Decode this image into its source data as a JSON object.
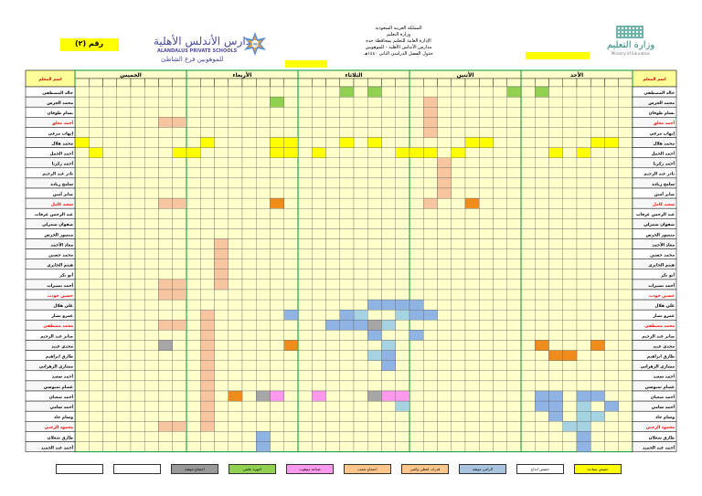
{
  "header": {
    "center_lines": [
      "المملكة العربية السعودية",
      "وزارة التعليم",
      "الإدارة العامة للتعليم بمحافظة جدة",
      "مدارس الأندلس الأهلية - للموهوبين",
      "جدول الفصل الدراسي الثاني ١٤٤٠هـ"
    ],
    "moe_name_ar": "وزارة التعليم",
    "moe_name_en": "Ministry of Education",
    "school_name_ar": "مدارس الأندلس الأهلية",
    "school_name_en": "ALANDALUS PRIVATE SCHOOLS",
    "school_branch": "للموهوبين فرع الشاطئ",
    "room_label": "رقم (٢)",
    "star_year": "1982"
  },
  "teacher_col_label": "اسم المعلم",
  "days": [
    "الأحد",
    "الأثنين",
    "الثلاثاء",
    "الأربعاء",
    "الخميس"
  ],
  "teachers": [
    {
      "name": "خالد المصطفى",
      "red": false
    },
    {
      "name": "محمد الخرس",
      "red": false
    },
    {
      "name": "بسام طوقان",
      "red": false
    },
    {
      "name": "أحمد معلق",
      "red": true
    },
    {
      "name": "إيهاب مرعي",
      "red": false
    },
    {
      "name": "محمد هلال",
      "red": false
    },
    {
      "name": "أحمد الجمل",
      "red": false
    },
    {
      "name": "أحمد زكريا",
      "red": false
    },
    {
      "name": "نادر عبد الرحيم",
      "red": false
    },
    {
      "name": "سامح زيادة",
      "red": false
    },
    {
      "name": "صابر أمين",
      "red": false
    },
    {
      "name": "سعيد كامل",
      "red": true
    },
    {
      "name": "عبد الرحمن عرفات",
      "red": false
    },
    {
      "name": "صفوان شمرلي",
      "red": false
    },
    {
      "name": "منصور الخرس",
      "red": false
    },
    {
      "name": "معاذ الأحمد",
      "red": false
    },
    {
      "name": "محمد حسين",
      "red": false
    },
    {
      "name": "هيثم الجابري",
      "red": false
    },
    {
      "name": "أبو بكر",
      "red": false
    },
    {
      "name": "أحمد نصيرات",
      "red": false
    },
    {
      "name": "حسين جودت",
      "red": true
    },
    {
      "name": "علي هلال",
      "red": false
    },
    {
      "name": "عمرو نصار",
      "red": false
    },
    {
      "name": "محمد مصطفى",
      "red": true
    },
    {
      "name": "صابر عبد الرحيم",
      "red": false
    },
    {
      "name": "مجدي عبيد",
      "red": false
    },
    {
      "name": "طارق ابراهيم",
      "red": false
    },
    {
      "name": "مشاري الزهراني",
      "red": false
    },
    {
      "name": "أحمد سعيد",
      "red": false
    },
    {
      "name": "عصام تمبوسي",
      "red": false
    },
    {
      "name": "أحمد شعبان",
      "red": false
    },
    {
      "name": "أحمد سامي",
      "red": false
    },
    {
      "name": "وسام جاد",
      "red": false
    },
    {
      "name": "محمود الرجبي",
      "red": true
    },
    {
      "name": "طارق شعلان",
      "red": false
    },
    {
      "name": "أحمد عبد الحميد",
      "red": false
    }
  ],
  "legend": [
    {
      "label": "حصص سيادية",
      "color": "#ffff00"
    },
    {
      "label": "حصص ابداع",
      "color": "#ffffff"
    },
    {
      "label": "الرامي موهبة",
      "color": "#a9c4de"
    },
    {
      "label": "قدرات لفظي وكمي",
      "color": "#ffc58a"
    },
    {
      "label": "اجتماع شعب",
      "color": "#ffc58a"
    },
    {
      "label": "صناعة موهوب",
      "color": "#ff99ee"
    },
    {
      "label": "اجهزة علمي",
      "color": "#92d050"
    },
    {
      "label": "اجتماع موهبة",
      "color": "#999999"
    },
    {
      "label": "",
      "color": "#ffffff"
    },
    {
      "label": "",
      "color": "#ffffff"
    }
  ],
  "colors": {
    "cell": "#ffffcc",
    "day_block_border": "#18a048",
    "yellow": "#ffff00",
    "green": "#92d050",
    "orange": "#f08c1c",
    "peach": "#f7c6a1",
    "blue": "#8fb4e3",
    "teal": "#a6d3e2",
    "gray": "#a6a6a6",
    "pink": "#ff99ee",
    "red_name": "#ff0000"
  },
  "cells": [
    [
      0,
      19,
      "green"
    ],
    [
      0,
      21,
      "green"
    ],
    [
      0,
      31,
      "green"
    ],
    [
      0,
      33,
      "green"
    ],
    [
      1,
      14,
      "green"
    ],
    [
      1,
      25,
      "peach"
    ],
    [
      2,
      25,
      "peach"
    ],
    [
      3,
      25,
      "peach"
    ],
    [
      3,
      6,
      "peach"
    ],
    [
      3,
      7,
      "peach"
    ],
    [
      4,
      25,
      "peach"
    ],
    [
      5,
      0,
      "yellow"
    ],
    [
      5,
      9,
      "yellow"
    ],
    [
      5,
      14,
      "yellow"
    ],
    [
      5,
      15,
      "yellow"
    ],
    [
      5,
      19,
      "yellow"
    ],
    [
      5,
      21,
      "yellow"
    ],
    [
      5,
      28,
      "yellow"
    ],
    [
      5,
      29,
      "yellow"
    ],
    [
      5,
      37,
      "yellow"
    ],
    [
      5,
      38,
      "yellow"
    ],
    [
      6,
      1,
      "yellow"
    ],
    [
      6,
      7,
      "yellow"
    ],
    [
      6,
      8,
      "yellow"
    ],
    [
      6,
      14,
      "yellow"
    ],
    [
      6,
      15,
      "yellow"
    ],
    [
      6,
      17,
      "yellow"
    ],
    [
      6,
      23,
      "yellow"
    ],
    [
      6,
      24,
      "yellow"
    ],
    [
      6,
      25,
      "yellow"
    ],
    [
      6,
      27,
      "yellow"
    ],
    [
      6,
      34,
      "yellow"
    ],
    [
      6,
      36,
      "yellow"
    ],
    [
      7,
      26,
      "peach"
    ],
    [
      8,
      26,
      "peach"
    ],
    [
      9,
      26,
      "peach"
    ],
    [
      10,
      26,
      "peach"
    ],
    [
      11,
      28,
      "orange"
    ],
    [
      11,
      14,
      "orange"
    ],
    [
      11,
      6,
      "peach"
    ],
    [
      11,
      7,
      "peach"
    ],
    [
      11,
      25,
      "peach"
    ],
    [
      15,
      10,
      "peach"
    ],
    [
      16,
      10,
      "peach"
    ],
    [
      17,
      10,
      "peach"
    ],
    [
      18,
      10,
      "peach"
    ],
    [
      19,
      10,
      "peach"
    ],
    [
      19,
      6,
      "peach"
    ],
    [
      19,
      7,
      "peach"
    ],
    [
      20,
      6,
      "peach"
    ],
    [
      20,
      7,
      "peach"
    ],
    [
      21,
      21,
      "blue"
    ],
    [
      21,
      22,
      "blue"
    ],
    [
      21,
      23,
      "blue"
    ],
    [
      21,
      24,
      "blue"
    ],
    [
      22,
      23,
      "teal"
    ],
    [
      22,
      24,
      "blue"
    ],
    [
      22,
      25,
      "blue"
    ],
    [
      22,
      20,
      "teal"
    ],
    [
      22,
      19,
      "blue"
    ],
    [
      22,
      15,
      "blue"
    ],
    [
      22,
      9,
      "peach"
    ],
    [
      23,
      18,
      "blue"
    ],
    [
      23,
      19,
      "blue"
    ],
    [
      23,
      20,
      "blue"
    ],
    [
      23,
      21,
      "gray"
    ],
    [
      23,
      22,
      "teal"
    ],
    [
      23,
      9,
      "peach"
    ],
    [
      23,
      6,
      "peach"
    ],
    [
      23,
      7,
      "peach"
    ],
    [
      24,
      24,
      "blue"
    ],
    [
      24,
      21,
      "blue"
    ],
    [
      24,
      9,
      "peach"
    ],
    [
      25,
      37,
      "orange"
    ],
    [
      25,
      33,
      "orange"
    ],
    [
      25,
      22,
      "teal"
    ],
    [
      25,
      15,
      "orange"
    ],
    [
      25,
      9,
      "peach"
    ],
    [
      25,
      6,
      "gray"
    ],
    [
      26,
      35,
      "orange"
    ],
    [
      26,
      34,
      "orange"
    ],
    [
      26,
      22,
      "blue"
    ],
    [
      26,
      21,
      "teal"
    ],
    [
      26,
      9,
      "peach"
    ],
    [
      27,
      22,
      "blue"
    ],
    [
      27,
      9,
      "peach"
    ],
    [
      28,
      9,
      "peach"
    ],
    [
      29,
      9,
      "peach"
    ],
    [
      30,
      37,
      "blue"
    ],
    [
      30,
      36,
      "blue"
    ],
    [
      30,
      34,
      "blue"
    ],
    [
      30,
      33,
      "blue"
    ],
    [
      30,
      23,
      "pink"
    ],
    [
      30,
      22,
      "pink"
    ],
    [
      30,
      21,
      "gray"
    ],
    [
      30,
      17,
      "pink"
    ],
    [
      30,
      14,
      "pink"
    ],
    [
      30,
      13,
      "gray"
    ],
    [
      30,
      11,
      "orange"
    ],
    [
      30,
      9,
      "peach"
    ],
    [
      31,
      38,
      "blue"
    ],
    [
      31,
      36,
      "teal"
    ],
    [
      31,
      34,
      "blue"
    ],
    [
      31,
      33,
      "blue"
    ],
    [
      31,
      23,
      "teal"
    ],
    [
      31,
      9,
      "peach"
    ],
    [
      32,
      37,
      "teal"
    ],
    [
      32,
      36,
      "teal"
    ],
    [
      32,
      34,
      "blue"
    ],
    [
      32,
      9,
      "peach"
    ],
    [
      33,
      36,
      "teal"
    ],
    [
      33,
      35,
      "teal"
    ],
    [
      33,
      9,
      "peach"
    ],
    [
      33,
      6,
      "peach"
    ],
    [
      33,
      7,
      "peach"
    ],
    [
      34,
      36,
      "blue"
    ],
    [
      34,
      13,
      "blue"
    ],
    [
      35,
      36,
      "blue"
    ],
    [
      35,
      13,
      "blue"
    ]
  ]
}
